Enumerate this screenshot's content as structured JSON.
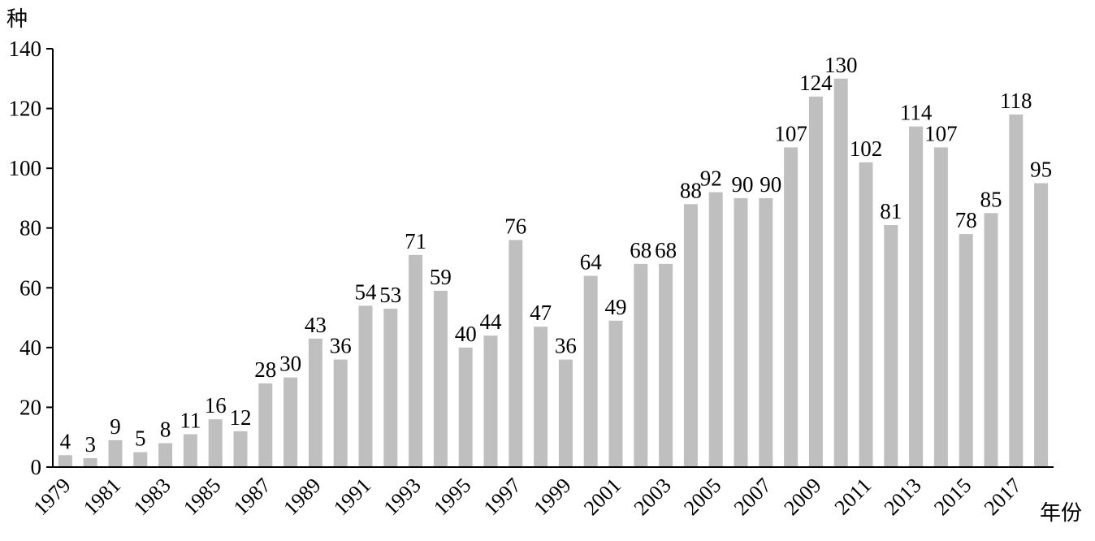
{
  "chart_data": {
    "type": "bar",
    "ylabel": "种",
    "xlabel": "年份",
    "ylim": [
      0,
      140
    ],
    "yticks": [
      0,
      20,
      40,
      60,
      80,
      100,
      120,
      140
    ],
    "grid": false,
    "categories": [
      "1979",
      "1980",
      "1981",
      "1982",
      "1983",
      "1984",
      "1985",
      "1986",
      "1987",
      "1988",
      "1989",
      "1990",
      "1991",
      "1992",
      "1993",
      "1994",
      "1995",
      "1996",
      "1997",
      "1998",
      "1999",
      "2000",
      "2001",
      "2002",
      "2003",
      "2004",
      "2005",
      "2006",
      "2007",
      "2008",
      "2009",
      "2010",
      "2011",
      "2012",
      "2013",
      "2014",
      "2015",
      "2016",
      "2017",
      "2018"
    ],
    "x_tick_labels": [
      "1979",
      "1981",
      "1983",
      "1985",
      "1987",
      "1989",
      "1991",
      "1993",
      "1995",
      "1997",
      "1999",
      "2001",
      "2003",
      "2005",
      "2007",
      "2009",
      "2011",
      "2013",
      "2015",
      "2017"
    ],
    "values": [
      4,
      3,
      9,
      5,
      8,
      11,
      16,
      12,
      28,
      30,
      43,
      36,
      54,
      53,
      71,
      59,
      40,
      44,
      76,
      47,
      36,
      64,
      49,
      68,
      68,
      88,
      92,
      90,
      90,
      107,
      124,
      130,
      102,
      81,
      114,
      107,
      78,
      85,
      118,
      95
    ],
    "bar_color": "#bfbfbf"
  }
}
